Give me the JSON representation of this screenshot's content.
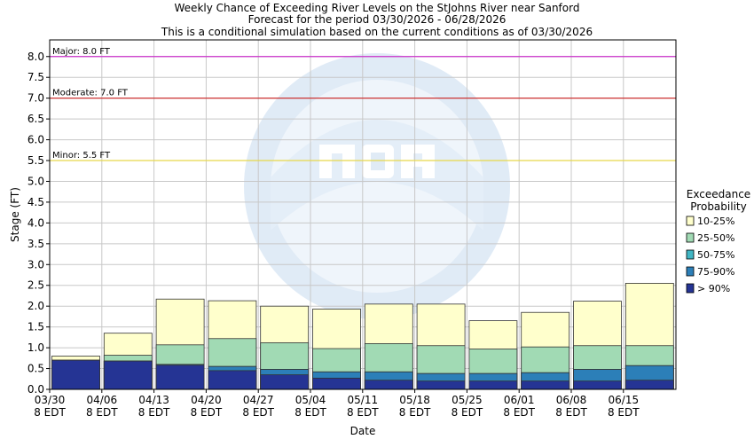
{
  "chart_data": {
    "type": "bar",
    "title": "Weekly Chance of Exceeding River Levels on the StJohns River near Sanford",
    "subtitle": "Forecast for the period 03/30/2026 - 06/28/2026",
    "subtitle2": "This is a conditional simulation based on the current conditions as of 03/30/2026",
    "xlabel": "Date",
    "ylabel": "Stage (FT)",
    "ylim": [
      0,
      8.4
    ],
    "yticks": [
      "0.0",
      "0.5",
      "1.0",
      "1.5",
      "2.0",
      "2.5",
      "3.0",
      "3.5",
      "4.0",
      "4.5",
      "5.0",
      "5.5",
      "6.0",
      "6.5",
      "7.0",
      "7.5",
      "8.0"
    ],
    "grid": true,
    "categories": [
      [
        "03/30",
        "8 EDT"
      ],
      [
        "04/06",
        "8 EDT"
      ],
      [
        "04/13",
        "8 EDT"
      ],
      [
        "04/20",
        "8 EDT"
      ],
      [
        "04/27",
        "8 EDT"
      ],
      [
        "05/04",
        "8 EDT"
      ],
      [
        "05/11",
        "8 EDT"
      ],
      [
        "05/18",
        "8 EDT"
      ],
      [
        "05/25",
        "8 EDT"
      ],
      [
        "06/01",
        "8 EDT"
      ],
      [
        "06/08",
        "8 EDT"
      ],
      [
        "06/15",
        "8 EDT"
      ]
    ],
    "flood_levels": [
      {
        "label": "Major: 8.0 FT",
        "value": 8.0,
        "color": "#cc33cc"
      },
      {
        "label": "Moderate: 7.0 FT",
        "value": 7.0,
        "color": "#cc2222"
      },
      {
        "label": "Minor: 5.5 FT",
        "value": 5.5,
        "color": "#e6d84a"
      }
    ],
    "legend": {
      "title": [
        "Exceedance",
        "Probability"
      ],
      "position": "right",
      "entries": [
        {
          "label": "10-25%",
          "color": "#ffffcc"
        },
        {
          "label": "25-50%",
          "color": "#a1dab4"
        },
        {
          "label": "50-75%",
          "color": "#41b6c4"
        },
        {
          "label": "75-90%",
          "color": "#2c7fb8"
        },
        {
          "label": "> 90%",
          "color": "#253494"
        }
      ]
    },
    "series": [
      {
        "name": "> 90%",
        "values": [
          0.7,
          0.68,
          0.58,
          0.45,
          0.35,
          0.27,
          0.22,
          0.2,
          0.2,
          0.2,
          0.2,
          0.22
        ]
      },
      {
        "name": "75-90%",
        "values": [
          0.7,
          0.68,
          0.6,
          0.55,
          0.48,
          0.42,
          0.42,
          0.38,
          0.38,
          0.4,
          0.48,
          0.57
        ]
      },
      {
        "name": "50-75%",
        "values": [
          0.7,
          0.68,
          0.6,
          0.55,
          0.48,
          0.42,
          0.42,
          0.38,
          0.38,
          0.4,
          0.48,
          0.57
        ]
      },
      {
        "name": "25-50%",
        "values": [
          0.7,
          0.82,
          1.07,
          1.22,
          1.12,
          0.98,
          1.1,
          1.05,
          0.97,
          1.02,
          1.05,
          1.05
        ]
      },
      {
        "name": "10-25%",
        "values": [
          0.8,
          1.35,
          2.17,
          2.13,
          2.0,
          1.93,
          2.05,
          2.05,
          1.65,
          1.85,
          2.12,
          2.55
        ]
      }
    ]
  }
}
